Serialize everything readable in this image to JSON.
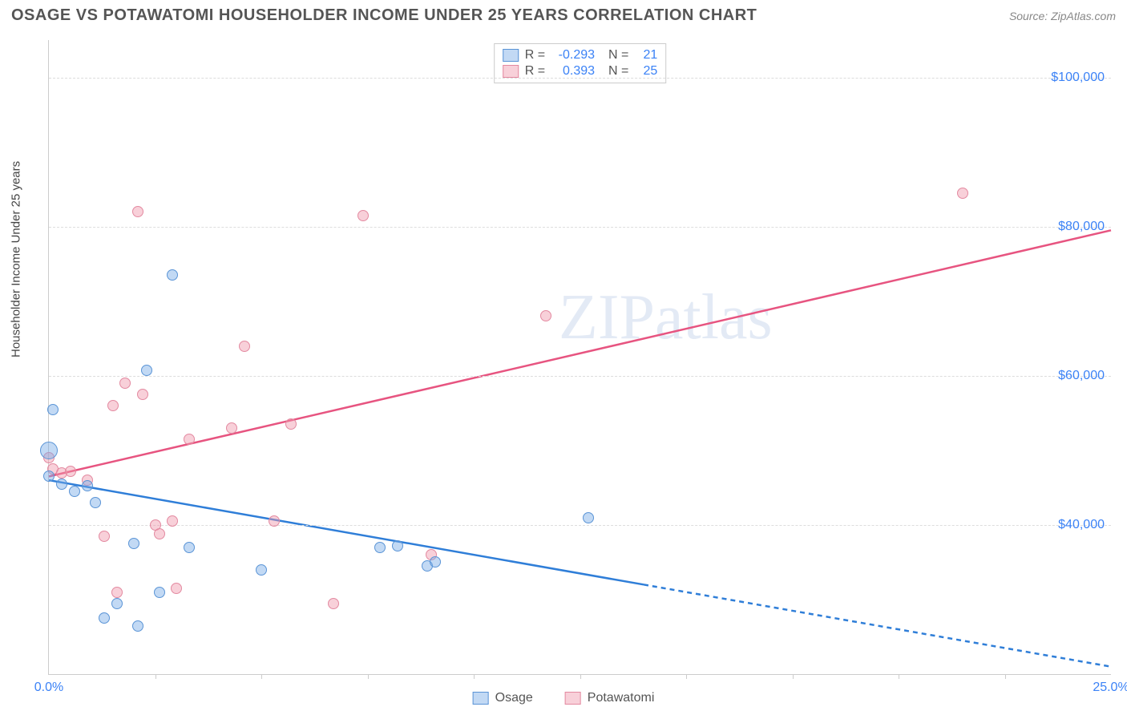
{
  "header": {
    "title": "OSAGE VS POTAWATOMI HOUSEHOLDER INCOME UNDER 25 YEARS CORRELATION CHART",
    "source": "Source: ZipAtlas.com"
  },
  "watermark": "ZIPatlas",
  "chart": {
    "type": "scatter",
    "background_color": "#ffffff",
    "grid_color": "#dddddd",
    "axis_color": "#cccccc",
    "tick_label_color": "#3b82f6",
    "y_axis_title": "Householder Income Under 25 years",
    "xlim": [
      0,
      25
    ],
    "ylim": [
      20000,
      105000
    ],
    "x_ticks_labeled": [
      {
        "val": 0,
        "label": "0.0%"
      },
      {
        "val": 25,
        "label": "25.0%"
      }
    ],
    "x_ticks_minor": [
      2.5,
      5,
      7.5,
      10,
      12.5,
      15,
      17.5,
      20,
      22.5
    ],
    "y_gridlines": [
      {
        "val": 40000,
        "label": "$40,000"
      },
      {
        "val": 60000,
        "label": "$60,000"
      },
      {
        "val": 80000,
        "label": "$80,000"
      },
      {
        "val": 100000,
        "label": "$100,000"
      }
    ],
    "series": {
      "osage": {
        "label": "Osage",
        "fill": "rgba(120,170,230,0.45)",
        "stroke": "#5a94d6",
        "line_color": "#2f7ed8",
        "r": "-0.293",
        "n": "21",
        "points": [
          {
            "x": 0.0,
            "y": 50000,
            "size": 22
          },
          {
            "x": 0.0,
            "y": 46500,
            "size": 14
          },
          {
            "x": 0.1,
            "y": 55500,
            "size": 14
          },
          {
            "x": 0.3,
            "y": 45500,
            "size": 14
          },
          {
            "x": 0.6,
            "y": 44500,
            "size": 14
          },
          {
            "x": 0.9,
            "y": 45200,
            "size": 14
          },
          {
            "x": 1.1,
            "y": 43000,
            "size": 14
          },
          {
            "x": 1.3,
            "y": 27500,
            "size": 14
          },
          {
            "x": 1.6,
            "y": 29500,
            "size": 14
          },
          {
            "x": 2.0,
            "y": 37500,
            "size": 14
          },
          {
            "x": 2.1,
            "y": 26500,
            "size": 14
          },
          {
            "x": 2.3,
            "y": 60700,
            "size": 14
          },
          {
            "x": 2.6,
            "y": 31000,
            "size": 14
          },
          {
            "x": 2.9,
            "y": 73500,
            "size": 14
          },
          {
            "x": 3.3,
            "y": 37000,
            "size": 14
          },
          {
            "x": 5.0,
            "y": 34000,
            "size": 14
          },
          {
            "x": 7.8,
            "y": 37000,
            "size": 14
          },
          {
            "x": 8.2,
            "y": 37200,
            "size": 14
          },
          {
            "x": 8.9,
            "y": 34500,
            "size": 14
          },
          {
            "x": 9.1,
            "y": 35000,
            "size": 14
          },
          {
            "x": 12.7,
            "y": 41000,
            "size": 14
          }
        ],
        "trend": {
          "x1": 0,
          "y1": 46000,
          "x2_solid": 14,
          "y2_solid": 32000,
          "x2": 25,
          "y2": 21000
        }
      },
      "potawatomi": {
        "label": "Potawatomi",
        "fill": "rgba(240,150,170,0.45)",
        "stroke": "#e389a0",
        "line_color": "#e75480",
        "r": "0.393",
        "n": "25",
        "points": [
          {
            "x": 0.0,
            "y": 49000,
            "size": 14
          },
          {
            "x": 0.1,
            "y": 47500,
            "size": 14
          },
          {
            "x": 0.3,
            "y": 47000,
            "size": 14
          },
          {
            "x": 0.5,
            "y": 47200,
            "size": 14
          },
          {
            "x": 0.9,
            "y": 46000,
            "size": 14
          },
          {
            "x": 1.3,
            "y": 38500,
            "size": 14
          },
          {
            "x": 1.5,
            "y": 56000,
            "size": 14
          },
          {
            "x": 1.6,
            "y": 31000,
            "size": 14
          },
          {
            "x": 1.8,
            "y": 59000,
            "size": 14
          },
          {
            "x": 2.1,
            "y": 82000,
            "size": 14
          },
          {
            "x": 2.2,
            "y": 57500,
            "size": 14
          },
          {
            "x": 2.5,
            "y": 40000,
            "size": 14
          },
          {
            "x": 2.6,
            "y": 38800,
            "size": 14
          },
          {
            "x": 2.9,
            "y": 40500,
            "size": 14
          },
          {
            "x": 3.0,
            "y": 31500,
            "size": 14
          },
          {
            "x": 3.3,
            "y": 51500,
            "size": 14
          },
          {
            "x": 4.3,
            "y": 53000,
            "size": 14
          },
          {
            "x": 4.6,
            "y": 64000,
            "size": 14
          },
          {
            "x": 5.3,
            "y": 40500,
            "size": 14
          },
          {
            "x": 5.7,
            "y": 53500,
            "size": 14
          },
          {
            "x": 6.7,
            "y": 29500,
            "size": 14
          },
          {
            "x": 7.4,
            "y": 81500,
            "size": 14
          },
          {
            "x": 9.0,
            "y": 36000,
            "size": 14
          },
          {
            "x": 11.7,
            "y": 68000,
            "size": 14
          },
          {
            "x": 21.5,
            "y": 84500,
            "size": 14
          }
        ],
        "trend": {
          "x1": 0,
          "y1": 46500,
          "x2_solid": 25,
          "y2_solid": 79500,
          "x2": 25,
          "y2": 79500
        }
      }
    }
  }
}
